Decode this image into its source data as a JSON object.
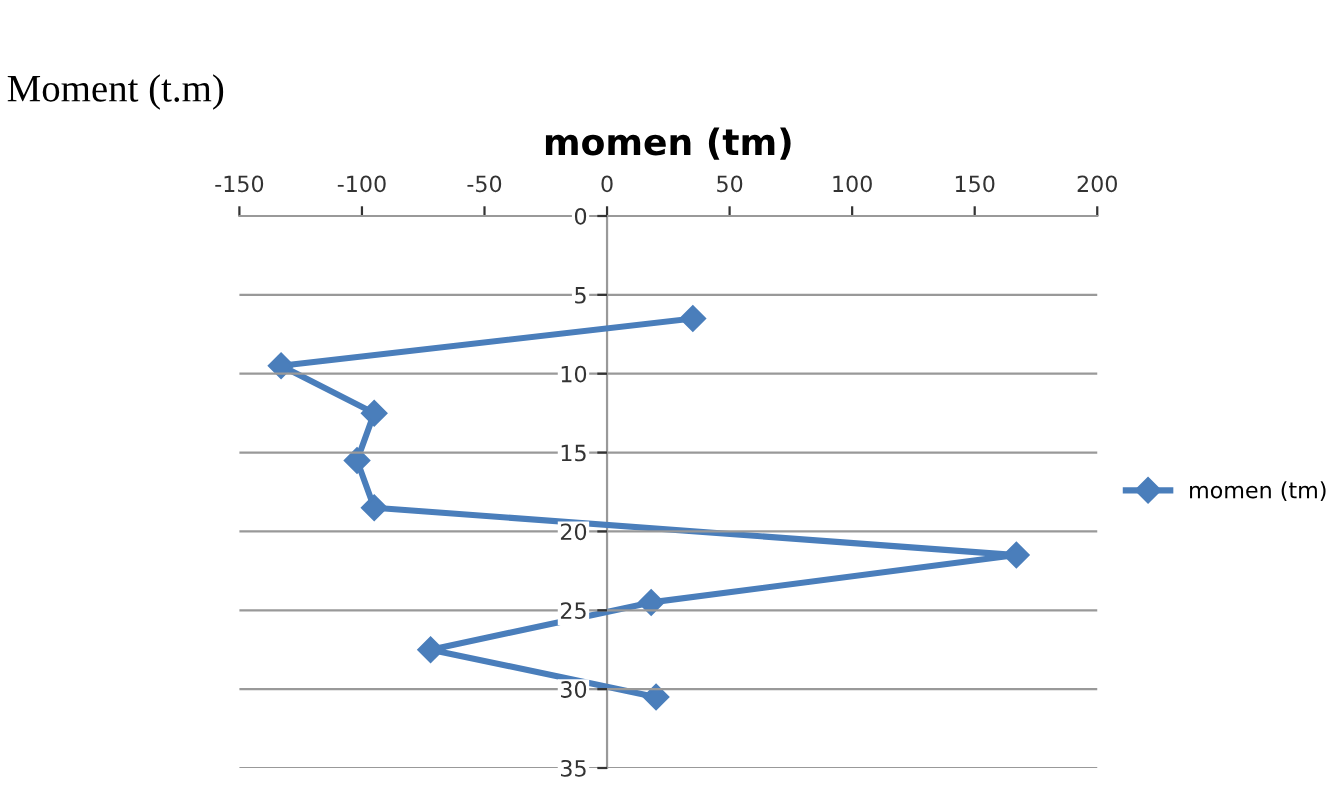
{
  "chart_data": {
    "type": "line",
    "title": "momen (tm)",
    "annotations": [
      "Moment (t.m)"
    ],
    "series": [
      {
        "name": "momen (tm)",
        "color": "#4a7ebb",
        "x": [
          35,
          -133,
          -95,
          -102,
          -95,
          167,
          18,
          -72,
          20
        ],
        "values": [
          6.5,
          9.5,
          12.5,
          15.5,
          18.5,
          21.5,
          24.5,
          27.5,
          30.5
        ]
      }
    ],
    "xlim": [
      -150,
      200
    ],
    "xticks": [
      -150,
      -100,
      -50,
      0,
      50,
      100,
      150,
      200
    ],
    "ylim": [
      35,
      0
    ],
    "yticks": [
      0,
      5,
      10,
      15,
      20,
      25,
      30,
      35
    ],
    "grid": "y",
    "legend": "right",
    "marker": "diamond",
    "line_style": "solid"
  }
}
